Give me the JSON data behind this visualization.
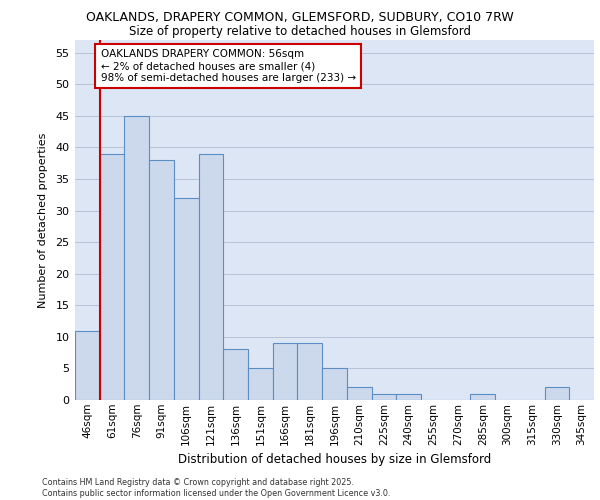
{
  "title_line1": "OAKLANDS, DRAPERY COMMON, GLEMSFORD, SUDBURY, CO10 7RW",
  "title_line2": "Size of property relative to detached houses in Glemsford",
  "xlabel": "Distribution of detached houses by size in Glemsford",
  "ylabel": "Number of detached properties",
  "categories": [
    "46sqm",
    "61sqm",
    "76sqm",
    "91sqm",
    "106sqm",
    "121sqm",
    "136sqm",
    "151sqm",
    "166sqm",
    "181sqm",
    "196sqm",
    "210sqm",
    "225sqm",
    "240sqm",
    "255sqm",
    "270sqm",
    "285sqm",
    "300sqm",
    "315sqm",
    "330sqm",
    "345sqm"
  ],
  "values": [
    11,
    39,
    45,
    38,
    32,
    39,
    8,
    5,
    9,
    9,
    5,
    2,
    1,
    1,
    0,
    0,
    1,
    0,
    0,
    2,
    0
  ],
  "bar_color": "#ccd9ed",
  "bar_edge_color": "#5b8ec4",
  "background_color": "#dce6f5",
  "ylim": [
    0,
    57
  ],
  "yticks": [
    0,
    5,
    10,
    15,
    20,
    25,
    30,
    35,
    40,
    45,
    50,
    55
  ],
  "annotation_line1": "OAKLANDS DRAPERY COMMON: 56sqm",
  "annotation_line2": "← 2% of detached houses are smaller (4)",
  "annotation_line3": "98% of semi-detached houses are larger (233) →",
  "red_line_x": 0.5,
  "footer_line1": "Contains HM Land Registry data © Crown copyright and database right 2025.",
  "footer_line2": "Contains public sector information licensed under the Open Government Licence v3.0."
}
